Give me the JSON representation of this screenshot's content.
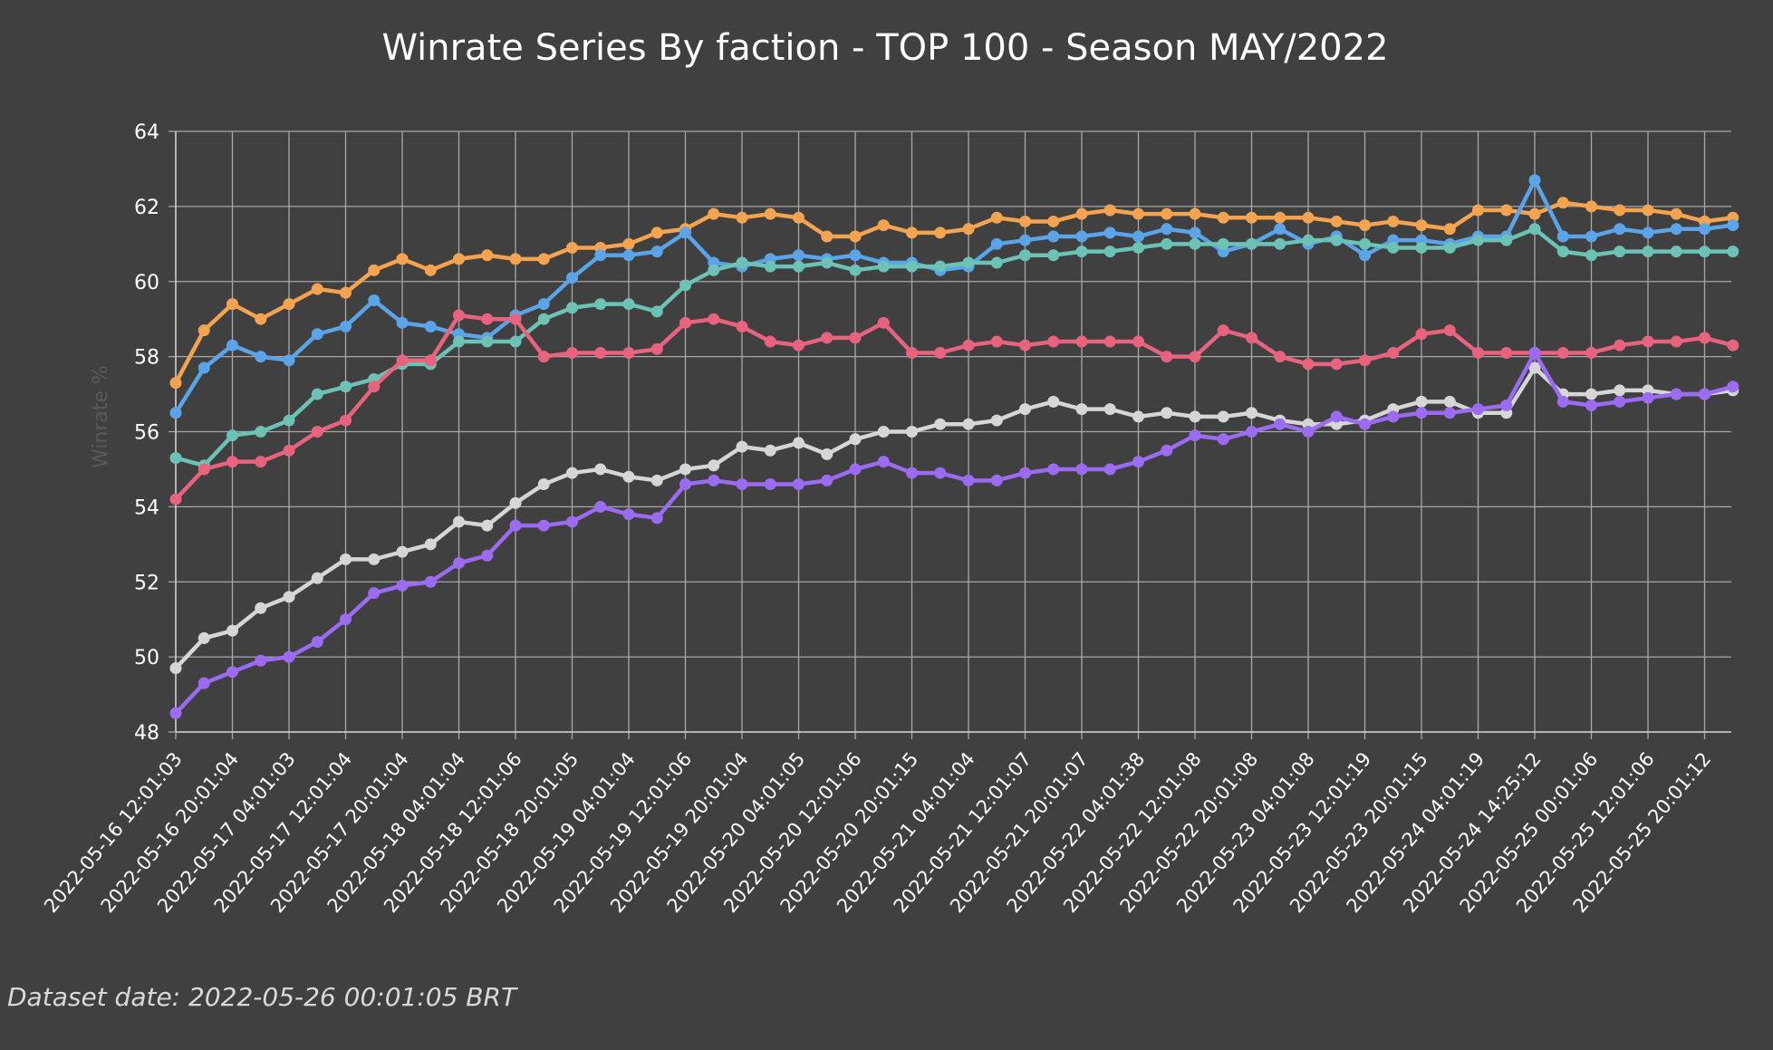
{
  "chart_data": {
    "type": "line",
    "title": "Winrate Series By faction - TOP 100 - Season MAY/2022",
    "xlabel": "",
    "ylabel": "Winrate %",
    "ylim": [
      48,
      64
    ],
    "yticks": [
      48,
      50,
      52,
      54,
      56,
      58,
      60,
      62,
      64
    ],
    "grid": true,
    "legend": "none",
    "x": [
      "2022-05-16 12:01:03",
      "",
      "2022-05-16 20:01:04",
      "",
      "2022-05-17 04:01:03",
      "",
      "2022-05-17 12:01:04",
      "",
      "2022-05-17 20:01:04",
      "",
      "2022-05-18 04:01:04",
      "",
      "2022-05-18 12:01:06",
      "",
      "2022-05-18 20:01:05",
      "",
      "2022-05-19 04:01:04",
      "",
      "2022-05-19 12:01:06",
      "",
      "2022-05-19 20:01:04",
      "",
      "2022-05-20 04:01:05",
      "",
      "2022-05-20 12:01:06",
      "",
      "2022-05-20 20:01:15",
      "",
      "2022-05-21 04:01:04",
      "",
      "2022-05-21 12:01:07",
      "",
      "2022-05-21 20:01:07",
      "",
      "2022-05-22 04:01:38",
      "",
      "2022-05-22 12:01:08",
      "",
      "2022-05-22 20:01:08",
      "",
      "2022-05-23 04:01:08",
      "",
      "2022-05-23 12:01:19",
      "",
      "2022-05-23 20:01:15",
      "",
      "2022-05-24 04:01:19",
      "",
      "2022-05-24 14:25:12",
      "",
      "2022-05-25 00:01:06",
      "",
      "2022-05-25 12:01:06",
      "",
      "2022-05-25 20:01:12",
      ""
    ],
    "xticks_shown": [
      "2022-05-16 12:01:03",
      "2022-05-16 20:01:04",
      "2022-05-17 04:01:03",
      "2022-05-17 12:01:04",
      "2022-05-17 20:01:04",
      "2022-05-18 04:01:04",
      "2022-05-18 12:01:06",
      "2022-05-18 20:01:05",
      "2022-05-19 04:01:04",
      "2022-05-19 12:01:06",
      "2022-05-19 20:01:04",
      "2022-05-20 04:01:05",
      "2022-05-20 12:01:06",
      "2022-05-20 20:01:15",
      "2022-05-21 04:01:04",
      "2022-05-21 12:01:07",
      "2022-05-21 20:01:07",
      "2022-05-22 04:01:38",
      "2022-05-22 12:01:08",
      "2022-05-22 20:01:08",
      "2022-05-23 04:01:08",
      "2022-05-23 12:01:19",
      "2022-05-23 20:01:15",
      "2022-05-24 04:01:19",
      "2022-05-24 14:25:12",
      "2022-05-25 00:01:06",
      "2022-05-25 12:01:06",
      "2022-05-25 20:01:12"
    ],
    "series": [
      {
        "color": "#f4a450",
        "values": [
          57.3,
          58.7,
          59.4,
          59.0,
          59.4,
          59.8,
          59.7,
          60.3,
          60.6,
          60.3,
          60.6,
          60.7,
          60.6,
          60.6,
          60.9,
          60.9,
          61.0,
          61.3,
          61.4,
          61.8,
          61.7,
          61.8,
          61.7,
          61.2,
          61.2,
          61.5,
          61.3,
          61.3,
          61.4,
          61.7,
          61.6,
          61.6,
          61.8,
          61.9,
          61.8,
          61.8,
          61.8,
          61.7,
          61.7,
          61.7,
          61.7,
          61.6,
          61.5,
          61.6,
          61.5,
          61.4,
          61.9,
          61.9,
          61.8,
          62.1,
          62.0,
          61.9,
          61.9,
          61.8,
          61.6,
          61.7
        ]
      },
      {
        "color": "#5ba4e8",
        "values": [
          56.5,
          57.7,
          58.3,
          58.0,
          57.9,
          58.6,
          58.8,
          59.5,
          58.9,
          58.8,
          58.6,
          58.5,
          59.1,
          59.4,
          60.1,
          60.7,
          60.7,
          60.8,
          61.3,
          60.5,
          60.4,
          60.6,
          60.7,
          60.6,
          60.7,
          60.5,
          60.5,
          60.3,
          60.4,
          61.0,
          61.1,
          61.2,
          61.2,
          61.3,
          61.2,
          61.4,
          61.3,
          60.8,
          61.0,
          61.4,
          61.0,
          61.2,
          60.7,
          61.1,
          61.1,
          61.0,
          61.2,
          61.2,
          62.7,
          61.2,
          61.2,
          61.4,
          61.3,
          61.4,
          61.4,
          61.5
        ]
      },
      {
        "color": "#6cc2b5",
        "values": [
          55.3,
          55.1,
          55.9,
          56.0,
          56.3,
          57.0,
          57.2,
          57.4,
          57.8,
          57.8,
          58.4,
          58.4,
          58.4,
          59.0,
          59.3,
          59.4,
          59.4,
          59.2,
          59.9,
          60.3,
          60.5,
          60.4,
          60.4,
          60.5,
          60.3,
          60.4,
          60.4,
          60.4,
          60.5,
          60.5,
          60.7,
          60.7,
          60.8,
          60.8,
          60.9,
          61.0,
          61.0,
          61.0,
          61.0,
          61.0,
          61.1,
          61.1,
          61.0,
          60.9,
          60.9,
          60.9,
          61.1,
          61.1,
          61.4,
          60.8,
          60.7,
          60.8,
          60.8,
          60.8,
          60.8,
          60.8
        ]
      },
      {
        "color": "#e8637e",
        "values": [
          54.2,
          55.0,
          55.2,
          55.2,
          55.5,
          56.0,
          56.3,
          57.2,
          57.9,
          57.9,
          59.1,
          59.0,
          59.0,
          58.0,
          58.1,
          58.1,
          58.1,
          58.2,
          58.9,
          59.0,
          58.8,
          58.4,
          58.3,
          58.5,
          58.5,
          58.9,
          58.1,
          58.1,
          58.3,
          58.4,
          58.3,
          58.4,
          58.4,
          58.4,
          58.4,
          58.0,
          58.0,
          58.7,
          58.5,
          58.0,
          57.8,
          57.8,
          57.9,
          58.1,
          58.6,
          58.7,
          58.1,
          58.1,
          58.1,
          58.1,
          58.1,
          58.3,
          58.4,
          58.4,
          58.5,
          58.3
        ]
      },
      {
        "color": "#d6d6d6",
        "values": [
          49.7,
          50.5,
          50.7,
          51.3,
          51.6,
          52.1,
          52.6,
          52.6,
          52.8,
          53.0,
          53.6,
          53.5,
          54.1,
          54.6,
          54.9,
          55.0,
          54.8,
          54.7,
          55.0,
          55.1,
          55.6,
          55.5,
          55.7,
          55.4,
          55.8,
          56.0,
          56.0,
          56.2,
          56.2,
          56.3,
          56.6,
          56.8,
          56.6,
          56.6,
          56.4,
          56.5,
          56.4,
          56.4,
          56.5,
          56.3,
          56.2,
          56.2,
          56.3,
          56.6,
          56.8,
          56.8,
          56.5,
          56.5,
          57.7,
          57.0,
          57.0,
          57.1,
          57.1,
          57.0,
          57.0,
          57.1
        ]
      },
      {
        "color": "#9b6cf2",
        "values": [
          48.5,
          49.3,
          49.6,
          49.9,
          50.0,
          50.4,
          51.0,
          51.7,
          51.9,
          52.0,
          52.5,
          52.7,
          53.5,
          53.5,
          53.6,
          54.0,
          53.8,
          53.7,
          54.6,
          54.7,
          54.6,
          54.6,
          54.6,
          54.7,
          55.0,
          55.2,
          54.9,
          54.9,
          54.7,
          54.7,
          54.9,
          55.0,
          55.0,
          55.0,
          55.2,
          55.5,
          55.9,
          55.8,
          56.0,
          56.2,
          56.0,
          56.4,
          56.2,
          56.4,
          56.5,
          56.5,
          56.6,
          56.7,
          58.1,
          56.8,
          56.7,
          56.8,
          56.9,
          57.0,
          57.0,
          57.2
        ]
      }
    ],
    "footnote": "Dataset date: 2022-05-26 00:01:05 BRT"
  }
}
